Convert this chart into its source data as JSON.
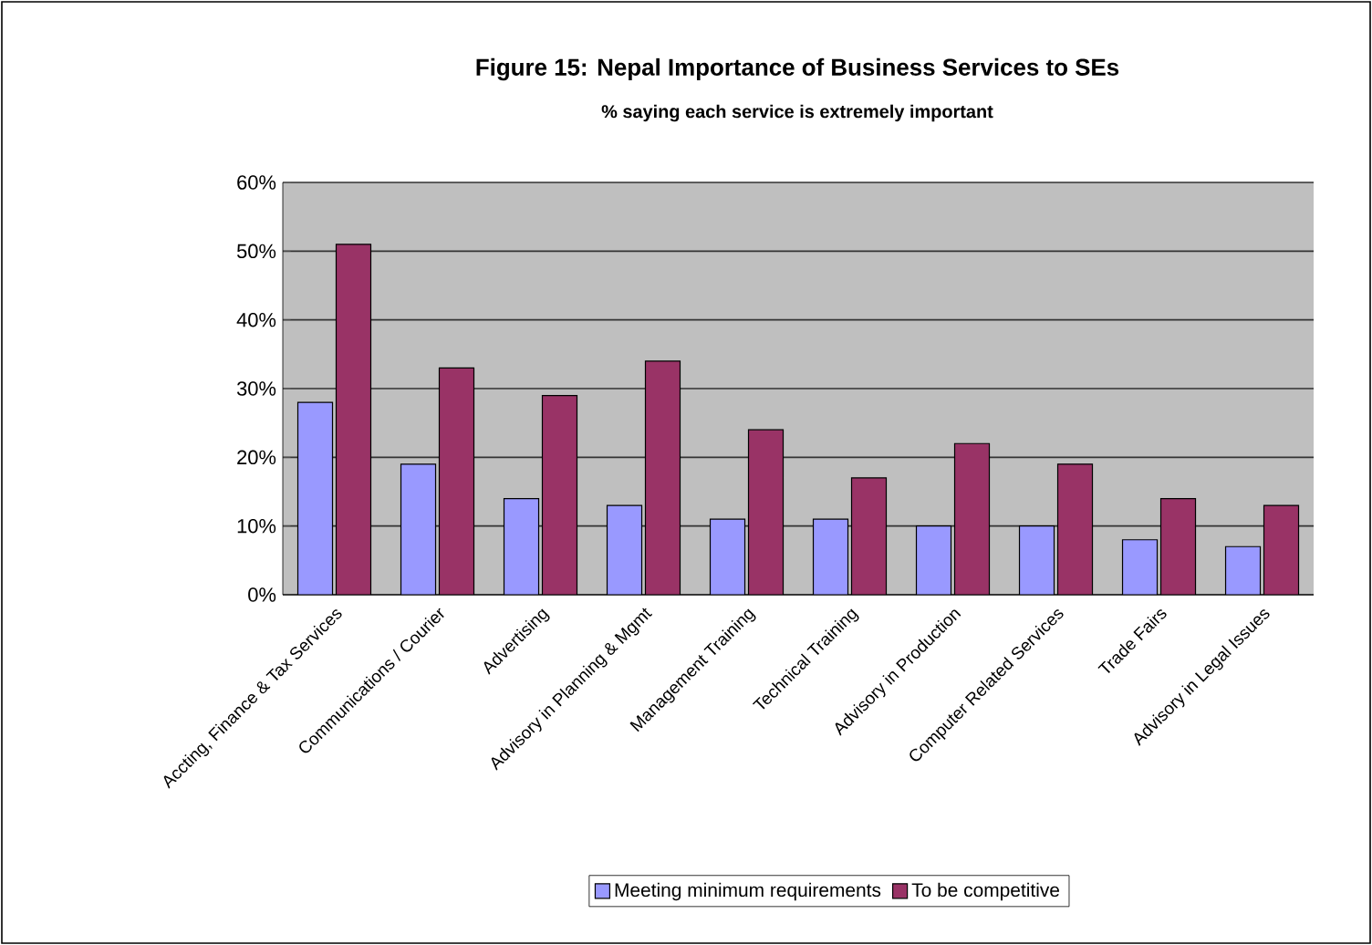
{
  "chart_data": {
    "type": "bar",
    "title": "Figure 15:  Nepal Importance of Business Services to SEs",
    "subtitle": "% saying each service is extremely important",
    "categories": [
      "Accting, Finance & Tax Services",
      "Communications / Courier",
      "Advertising",
      "Advisory in Planning & Mgmt",
      "Management Training",
      "Technical Training",
      "Advisory in Production",
      "Computer Related Services",
      "Trade Fairs",
      "Advisory in Legal Issues"
    ],
    "series": [
      {
        "name": "Meeting minimum requirements",
        "color": "#9999ff",
        "values": [
          28,
          19,
          14,
          13,
          11,
          11,
          10,
          10,
          8,
          7
        ]
      },
      {
        "name": "To be competitive",
        "color": "#993366",
        "values": [
          51,
          33,
          29,
          34,
          24,
          17,
          22,
          19,
          14,
          13
        ]
      }
    ],
    "ylim": [
      0,
      60
    ],
    "yticks": [
      {
        "value": 0,
        "label": "0%"
      },
      {
        "value": 10,
        "label": "10%"
      },
      {
        "value": 20,
        "label": "20%"
      },
      {
        "value": 30,
        "label": "30%"
      },
      {
        "value": 40,
        "label": "40%"
      },
      {
        "value": 50,
        "label": "50%"
      },
      {
        "value": 60,
        "label": "60%"
      }
    ],
    "grid": "y",
    "legend": "bottom"
  }
}
